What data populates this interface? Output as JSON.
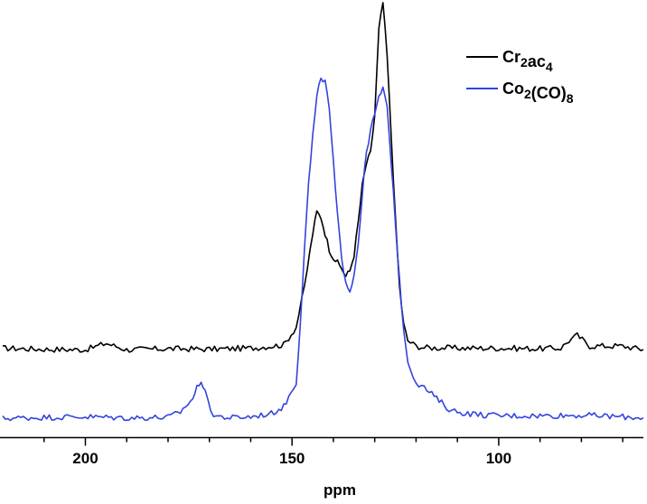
{
  "chart_data": {
    "type": "line",
    "title": "",
    "xlabel": "ppm",
    "ylabel": "",
    "xlim": [
      220,
      65
    ],
    "x_reversed": true,
    "y_axis_visible": false,
    "grid": false,
    "xticks": [
      200,
      150,
      100
    ],
    "legend_position": "top-right",
    "series": [
      {
        "name": "Cr2ac4",
        "legend_parts": [
          {
            "t": "Cr",
            "sub": false
          },
          {
            "t": "2",
            "sub": true
          },
          {
            "t": "ac",
            "sub": false
          },
          {
            "t": "4",
            "sub": true
          }
        ],
        "color": "#000000",
        "x": [
          220,
          210,
          200,
          195,
          190,
          180,
          170,
          160,
          152,
          149,
          147,
          145,
          144,
          143,
          142,
          141,
          140,
          139,
          138,
          137,
          136,
          135,
          134,
          133,
          132,
          131,
          130,
          129,
          128,
          127,
          126,
          125,
          124,
          123,
          122,
          120,
          118,
          110,
          100,
          90,
          85,
          83,
          81,
          78,
          70,
          65
        ],
        "y": [
          0.6,
          0.4,
          0.3,
          1.5,
          0.3,
          0.5,
          0.4,
          0.6,
          1.2,
          4.5,
          12,
          22,
          26,
          25,
          22,
          19,
          17.5,
          16.5,
          15.5,
          14,
          15,
          18,
          24,
          31,
          35,
          37,
          44,
          60,
          65,
          55,
          40,
          25,
          12,
          5,
          2,
          1,
          0.7,
          0.6,
          0.6,
          0.5,
          0.6,
          2,
          3,
          1,
          1,
          0.3
        ]
      },
      {
        "name": "Co2(CO)8",
        "legend_parts": [
          {
            "t": "Co",
            "sub": false
          },
          {
            "t": "2",
            "sub": true
          },
          {
            "t": "(CO)",
            "sub": false
          },
          {
            "t": "8",
            "sub": true
          }
        ],
        "color": "#3344dd",
        "x": [
          220,
          210,
          200,
          190,
          180,
          177,
          174,
          173,
          172,
          171,
          169,
          165,
          160,
          155,
          152,
          149,
          148,
          147,
          146,
          145,
          144,
          143,
          142,
          141,
          140,
          139,
          138,
          137,
          136,
          135,
          134,
          133,
          132,
          131,
          130,
          129,
          128,
          127,
          126,
          125,
          124,
          123,
          122,
          120,
          118,
          115,
          112,
          110,
          105,
          100,
          90,
          80,
          70,
          65
        ],
        "y": [
          0.3,
          0.5,
          0.6,
          0.4,
          0.5,
          1.5,
          4,
          6,
          7.5,
          5,
          0.8,
          0.4,
          0.6,
          1.2,
          2.5,
          7,
          18,
          32,
          44,
          53,
          60,
          64,
          63,
          58,
          48,
          38,
          30,
          26,
          24,
          27,
          33,
          42,
          50,
          54,
          57,
          60,
          62,
          58,
          48,
          37,
          26,
          17,
          11,
          7,
          6,
          4,
          2,
          1.5,
          1,
          0.8,
          0.8,
          0.9,
          0.6,
          0.4
        ]
      }
    ]
  }
}
